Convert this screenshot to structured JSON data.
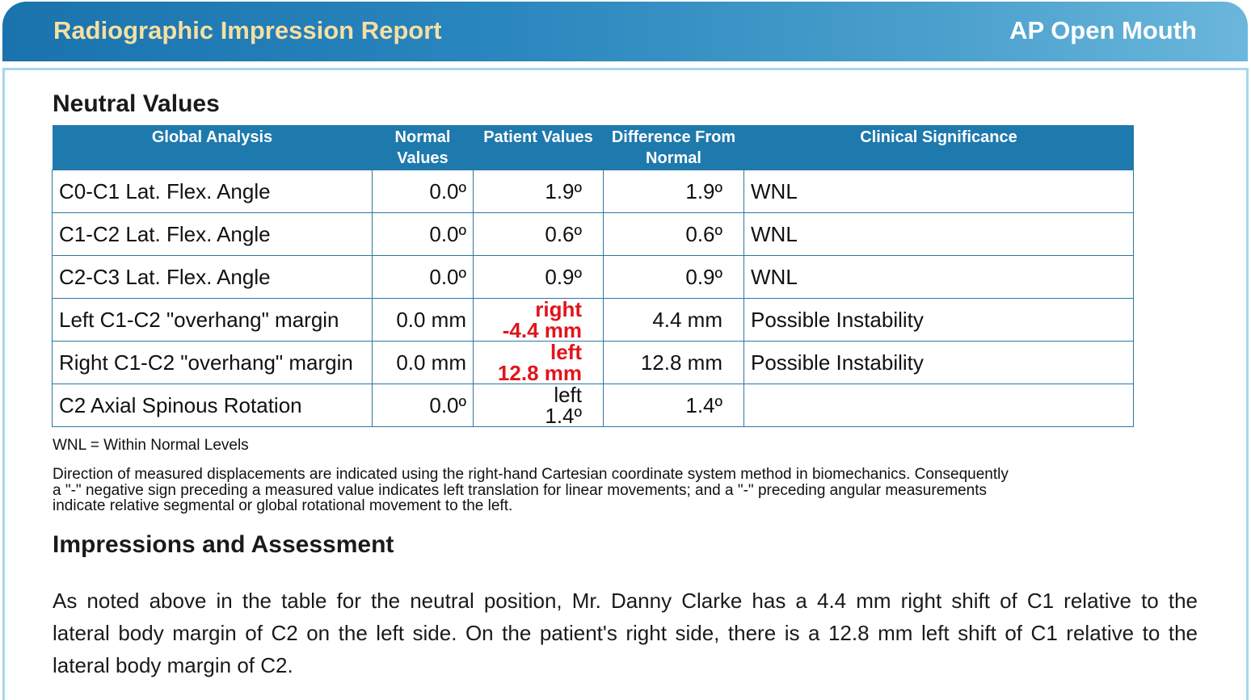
{
  "header": {
    "title": "Radiographic Impression Report",
    "view": "AP Open Mouth",
    "colors": {
      "bar_start": "#1a73ad",
      "bar_end": "#6bb6dc",
      "title": "#f5dfa4"
    }
  },
  "neutral": {
    "title": "Neutral Values",
    "columns": [
      "Global Analysis",
      "Normal Values",
      "Patient Values",
      "Difference From Normal",
      "Clinical Significance"
    ],
    "column_lines": [
      [
        "Global Analysis"
      ],
      [
        "Normal",
        "Values"
      ],
      [
        "Patient Values"
      ],
      [
        "Difference From",
        "Normal"
      ],
      [
        "Clinical Significance"
      ]
    ],
    "rows": [
      {
        "label": "C0-C1 Lat. Flex. Angle",
        "normal": "0.0º",
        "patient": [
          "1.9º"
        ],
        "patient_flag": false,
        "difference": "1.9º",
        "significance": "WNL"
      },
      {
        "label": "C1-C2 Lat. Flex. Angle",
        "normal": "0.0º",
        "patient": [
          "0.6º"
        ],
        "patient_flag": false,
        "difference": "0.6º",
        "significance": "WNL"
      },
      {
        "label": "C2-C3 Lat. Flex. Angle",
        "normal": "0.0º",
        "patient": [
          "0.9º"
        ],
        "patient_flag": false,
        "difference": "0.9º",
        "significance": "WNL"
      },
      {
        "label": "Left C1-C2 \"overhang\" margin",
        "normal": "0.0 mm",
        "patient": [
          "right",
          "-4.4 mm"
        ],
        "patient_flag": true,
        "difference": "4.4 mm",
        "significance": "Possible Instability"
      },
      {
        "label": "Right C1-C2 \"overhang\" margin",
        "normal": "0.0 mm",
        "patient": [
          "left",
          "12.8 mm"
        ],
        "patient_flag": true,
        "difference": "12.8 mm",
        "significance": "Possible Instability"
      },
      {
        "label": "C2 Axial Spinous Rotation",
        "normal": "0.0º",
        "patient": [
          "left",
          "1.4º"
        ],
        "patient_flag": false,
        "difference": "1.4º",
        "significance": ""
      }
    ],
    "flag_color": "#e2141b",
    "legend": "WNL = Within Normal Levels",
    "note_lines": [
      "Direction of measured displacements are indicated using the right-hand Cartesian coordinate system method in biomechanics. Consequently",
      "a \"-\" negative sign preceding a measured value indicates left translation for linear movements; and a \"-\" preceding angular measurements",
      "indicate relative segmental or global rotational movement to the left."
    ]
  },
  "impressions": {
    "title": "Impressions and Assessment",
    "paragraph_lines": [
      "As noted above in the table for the neutral position, Mr. Danny Clarke has a 4.4 mm right shift of C1 relative to the",
      "lateral body margin of C2 on the left side. On the patient's right side, there is a 12.8 mm left shift of C1 relative to the",
      "lateral body margin of C2."
    ]
  }
}
